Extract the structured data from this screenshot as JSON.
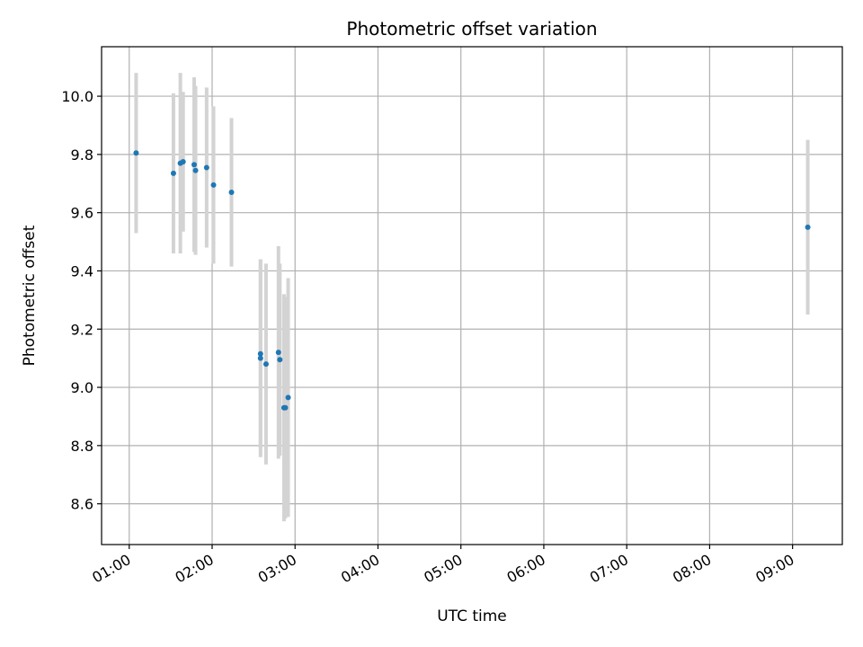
{
  "chart_data": {
    "type": "scatter",
    "title": "Photometric offset variation",
    "xlabel": "UTC time",
    "ylabel": "Photometric offset",
    "x_ticks": [
      "01:00",
      "02:00",
      "03:00",
      "04:00",
      "05:00",
      "06:00",
      "07:00",
      "08:00",
      "09:00"
    ],
    "y_ticks": [
      "8.6",
      "8.8",
      "9.0",
      "9.2",
      "9.4",
      "9.6",
      "9.8",
      "10.0"
    ],
    "xlim": [
      "00:40",
      "09:36"
    ],
    "ylim": [
      8.46,
      10.17
    ],
    "grid": true,
    "marker_color": "#1f77b4",
    "errorbar_color": "#d3d3d3",
    "points": [
      {
        "x": "01:05",
        "y": 9.805,
        "err": 0.275
      },
      {
        "x": "01:32",
        "y": 9.735,
        "err": 0.275
      },
      {
        "x": "01:37",
        "y": 9.77,
        "err": 0.31
      },
      {
        "x": "01:39",
        "y": 9.775,
        "err": 0.24
      },
      {
        "x": "01:47",
        "y": 9.765,
        "err": 0.3
      },
      {
        "x": "01:48",
        "y": 9.745,
        "err": 0.29
      },
      {
        "x": "01:56",
        "y": 9.755,
        "err": 0.275
      },
      {
        "x": "02:01",
        "y": 9.695,
        "err": 0.27
      },
      {
        "x": "02:14",
        "y": 9.67,
        "err": 0.255
      },
      {
        "x": "02:35",
        "y": 9.115,
        "err": 0.325
      },
      {
        "x": "02:35",
        "y": 9.1,
        "err": 0.34
      },
      {
        "x": "02:39",
        "y": 9.08,
        "err": 0.345
      },
      {
        "x": "02:48",
        "y": 9.12,
        "err": 0.365
      },
      {
        "x": "02:49",
        "y": 9.095,
        "err": 0.33
      },
      {
        "x": "02:52",
        "y": 8.93,
        "err": 0.39
      },
      {
        "x": "02:53",
        "y": 8.93,
        "err": 0.38
      },
      {
        "x": "02:55",
        "y": 8.965,
        "err": 0.41
      },
      {
        "x": "09:11",
        "y": 9.55,
        "err": 0.3
      }
    ]
  }
}
